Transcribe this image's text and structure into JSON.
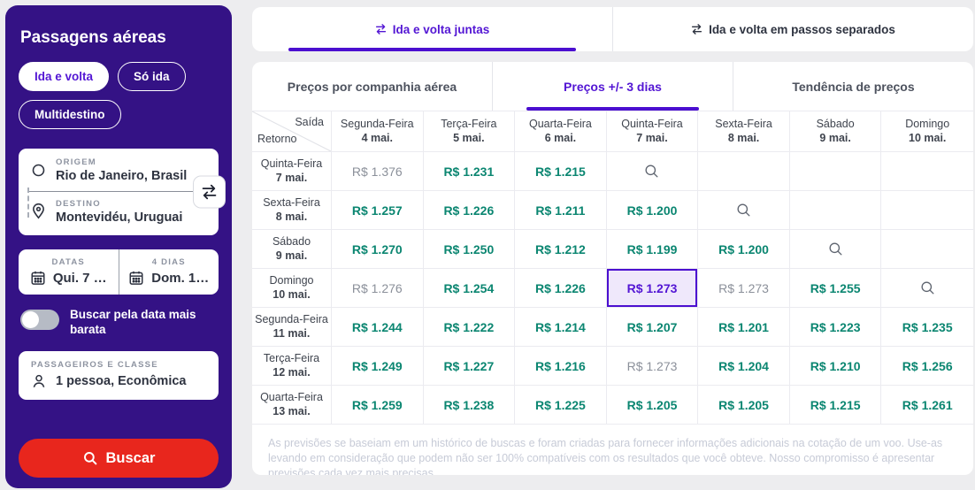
{
  "colors": {
    "sidebar": "#341285",
    "accent": "#5316d4",
    "teal_price": "#0b8671",
    "gray_price": "#8b909a",
    "search_button_red": "#e8261d",
    "selected_cell_bg": "#efe8fb",
    "page_bg": "#ededef"
  },
  "sidebar": {
    "title": "Passagens aéreas",
    "trip_types": [
      {
        "label": "Ida e volta",
        "selected": true
      },
      {
        "label": "Só ida",
        "selected": false
      },
      {
        "label": "Multidestino",
        "selected": false
      }
    ],
    "origin": {
      "label": "ORIGEM",
      "value": "Rio de Janeiro, Brasil"
    },
    "destination": {
      "label": "DESTINO",
      "value": "Montevidéu, Uruguai"
    },
    "dates": {
      "label": "DATAS",
      "value": "Qui. 7 …"
    },
    "return": {
      "label": "4 DIAS",
      "value": "Dom. 1…"
    },
    "cheapest_toggle": {
      "label": "Buscar pela data mais barata",
      "on": false
    },
    "passengers": {
      "label": "PASSAGEIROS E CLASSE",
      "value": "1 pessoa, Econômica"
    },
    "search_button": "Buscar"
  },
  "top_tabs": [
    {
      "label": "Ida e volta juntas",
      "active": true
    },
    {
      "label": "Ida e volta em passos separados",
      "active": false
    }
  ],
  "price_tabs": [
    {
      "label": "Preços por companhia aérea",
      "active": false
    },
    {
      "label": "Preços +/- 3 dias",
      "active": true
    },
    {
      "label": "Tendência de preços",
      "active": false
    }
  ],
  "matrix": {
    "corner": {
      "top": "Saída",
      "bottom": "Retorno"
    },
    "columns": [
      {
        "day": "Segunda-Feira",
        "date": "4 mai."
      },
      {
        "day": "Terça-Feira",
        "date": "5 mai."
      },
      {
        "day": "Quarta-Feira",
        "date": "6 mai."
      },
      {
        "day": "Quinta-Feira",
        "date": "7 mai."
      },
      {
        "day": "Sexta-Feira",
        "date": "8 mai."
      },
      {
        "day": "Sábado",
        "date": "9 mai."
      },
      {
        "day": "Domingo",
        "date": "10 mai."
      }
    ],
    "rows": [
      {
        "day": "Quinta-Feira",
        "date": "7 mai.",
        "cells": [
          {
            "type": "gray",
            "value": "R$ 1.376"
          },
          {
            "type": "green",
            "value": "R$ 1.231"
          },
          {
            "type": "green",
            "value": "R$ 1.215"
          },
          {
            "type": "search"
          },
          {
            "type": "empty"
          },
          {
            "type": "empty"
          },
          {
            "type": "empty"
          }
        ]
      },
      {
        "day": "Sexta-Feira",
        "date": "8 mai.",
        "cells": [
          {
            "type": "green",
            "value": "R$ 1.257"
          },
          {
            "type": "green",
            "value": "R$ 1.226"
          },
          {
            "type": "green",
            "value": "R$ 1.211"
          },
          {
            "type": "green",
            "value": "R$ 1.200"
          },
          {
            "type": "search"
          },
          {
            "type": "empty"
          },
          {
            "type": "empty"
          }
        ]
      },
      {
        "day": "Sábado",
        "date": "9 mai.",
        "cells": [
          {
            "type": "green",
            "value": "R$ 1.270"
          },
          {
            "type": "green",
            "value": "R$ 1.250"
          },
          {
            "type": "green",
            "value": "R$ 1.212"
          },
          {
            "type": "green",
            "value": "R$ 1.199"
          },
          {
            "type": "green",
            "value": "R$ 1.200"
          },
          {
            "type": "search"
          },
          {
            "type": "empty"
          }
        ]
      },
      {
        "day": "Domingo",
        "date": "10 mai.",
        "cells": [
          {
            "type": "gray",
            "value": "R$ 1.276"
          },
          {
            "type": "green",
            "value": "R$ 1.254"
          },
          {
            "type": "green",
            "value": "R$ 1.226"
          },
          {
            "type": "selected",
            "value": "R$ 1.273"
          },
          {
            "type": "gray",
            "value": "R$ 1.273"
          },
          {
            "type": "green",
            "value": "R$ 1.255"
          },
          {
            "type": "search"
          }
        ]
      },
      {
        "day": "Segunda-Feira",
        "date": "11 mai.",
        "cells": [
          {
            "type": "green",
            "value": "R$ 1.244"
          },
          {
            "type": "green",
            "value": "R$ 1.222"
          },
          {
            "type": "green",
            "value": "R$ 1.214"
          },
          {
            "type": "green",
            "value": "R$ 1.207"
          },
          {
            "type": "green",
            "value": "R$ 1.201"
          },
          {
            "type": "green",
            "value": "R$ 1.223"
          },
          {
            "type": "green",
            "value": "R$ 1.235"
          }
        ]
      },
      {
        "day": "Terça-Feira",
        "date": "12 mai.",
        "cells": [
          {
            "type": "green",
            "value": "R$ 1.249"
          },
          {
            "type": "green",
            "value": "R$ 1.227"
          },
          {
            "type": "green",
            "value": "R$ 1.216"
          },
          {
            "type": "gray",
            "value": "R$ 1.273"
          },
          {
            "type": "green",
            "value": "R$ 1.204"
          },
          {
            "type": "green",
            "value": "R$ 1.210"
          },
          {
            "type": "green",
            "value": "R$ 1.256"
          }
        ]
      },
      {
        "day": "Quarta-Feira",
        "date": "13 mai.",
        "cells": [
          {
            "type": "green",
            "value": "R$ 1.259"
          },
          {
            "type": "green",
            "value": "R$ 1.238"
          },
          {
            "type": "green",
            "value": "R$ 1.225"
          },
          {
            "type": "green",
            "value": "R$ 1.205"
          },
          {
            "type": "green",
            "value": "R$ 1.205"
          },
          {
            "type": "green",
            "value": "R$ 1.215"
          },
          {
            "type": "green",
            "value": "R$ 1.261"
          }
        ]
      }
    ]
  },
  "disclaimer": "As previsões se baseiam em um histórico de buscas e foram criadas para fornecer informações adicionais na cotação de um voo. Use-as levando em consideração que podem não ser 100% compatíveis com os resultados que você obteve. Nosso compromisso é apresentar previsões cada vez mais precisas."
}
